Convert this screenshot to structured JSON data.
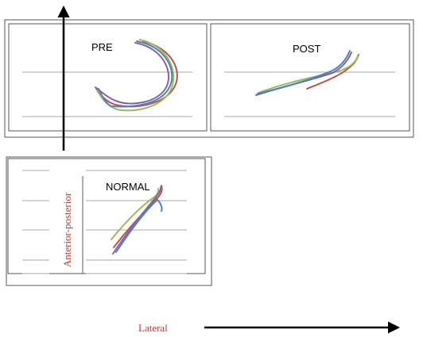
{
  "panels": {
    "pre": "PRE",
    "post": "POST",
    "normal": "NORMAL"
  },
  "axes": {
    "vertical": "Anterior-posterior",
    "horizontal": "Lateral"
  }
}
